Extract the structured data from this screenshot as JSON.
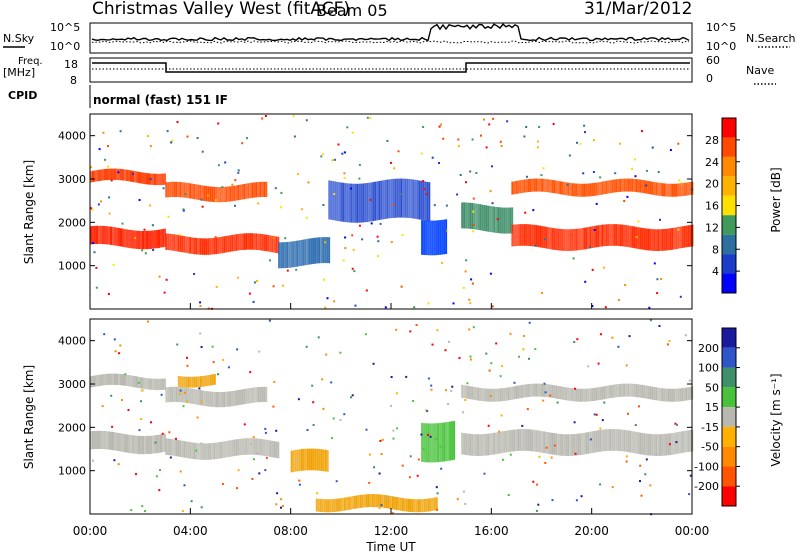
{
  "header": {
    "title": "Christmas Valley West (fitACF)",
    "beam": "Beam 05",
    "date": "31/Mar/2012"
  },
  "top_panel": {
    "left_label": "N.Sky",
    "right_label": "N.Search",
    "tick_high": "10^5",
    "tick_low": "10^0"
  },
  "freq_panel": {
    "left_label_line1": "Freq.",
    "left_label_line2": "[MHz]",
    "tick_high": "18",
    "tick_low": "8",
    "right_label": "Nave",
    "right_tick_high": "60",
    "right_tick_low": "0"
  },
  "cpid": {
    "label": "CPID",
    "value": "normal (fast) 151 IF"
  },
  "chart_data": [
    {
      "type": "heatmap",
      "title": "",
      "ylabel": "Slant Range [km]",
      "ylim": [
        0,
        4500
      ],
      "yticks": [
        "1000",
        "2000",
        "3000",
        "4000"
      ],
      "xlim": [
        0,
        24
      ],
      "colorbar_label": "Power [dB]",
      "colorbar_ticks": [
        "28",
        "24",
        "20",
        "16",
        "12",
        "8",
        "4"
      ],
      "colorbar_colors": [
        "#ff0000",
        "#ff4a00",
        "#ff8a00",
        "#ffb300",
        "#ffe000",
        "#3f9a5c",
        "#2d6f9f",
        "#1a3cc8",
        "#0000ff"
      ],
      "bands": [
        {
          "x0": 0.0,
          "x1": 3.0,
          "ymid": 3050,
          "thick": 260,
          "color": "#ff3a00"
        },
        {
          "x0": 0.0,
          "x1": 3.0,
          "ymid": 1650,
          "thick": 420,
          "color": "#ff2200"
        },
        {
          "x0": 3.0,
          "x1": 7.0,
          "ymid": 2700,
          "thick": 350,
          "color": "#ff4a00"
        },
        {
          "x0": 3.0,
          "x1": 7.5,
          "ymid": 1500,
          "thick": 380,
          "color": "#ff2a00"
        },
        {
          "x0": 7.5,
          "x1": 9.5,
          "ymid": 1300,
          "thick": 600,
          "color": "#2f6fb0"
        },
        {
          "x0": 9.5,
          "x1": 13.5,
          "ymid": 2500,
          "thick": 900,
          "color": "#2a4fcf"
        },
        {
          "x0": 13.2,
          "x1": 14.2,
          "ymid": 1700,
          "thick": 800,
          "color": "#0040ff"
        },
        {
          "x0": 14.8,
          "x1": 16.8,
          "ymid": 2100,
          "thick": 600,
          "color": "#3f8f6a"
        },
        {
          "x0": 16.8,
          "x1": 24.0,
          "ymid": 2800,
          "thick": 300,
          "color": "#ff5000"
        },
        {
          "x0": 16.8,
          "x1": 24.0,
          "ymid": 1650,
          "thick": 500,
          "color": "#ff2a00"
        }
      ]
    },
    {
      "type": "heatmap",
      "title": "",
      "ylabel": "Slant Range [km]",
      "xlabel": "Time UT",
      "ylim": [
        0,
        4500
      ],
      "yticks": [
        "1000",
        "2000",
        "3000",
        "4000"
      ],
      "xlim": [
        0,
        24
      ],
      "xticks": [
        "00:00",
        "04:00",
        "08:00",
        "12:00",
        "16:00",
        "20:00",
        "00:00"
      ],
      "colorbar_label": "Velocity [m s⁻¹]",
      "colorbar_ticks": [
        "200",
        "100",
        "50",
        "15",
        "-15",
        "-50",
        "-100",
        "-200"
      ],
      "colorbar_colors": [
        "#1a1aa0",
        "#2f55c8",
        "#3f8f6a",
        "#48c23a",
        "#b8b8b0",
        "#ffb000",
        "#ff8a00",
        "#ff5500",
        "#ff0000"
      ],
      "bands": [
        {
          "x0": 0.0,
          "x1": 3.0,
          "ymid": 3050,
          "thick": 260,
          "color": "#b8b8b0"
        },
        {
          "x0": 0.0,
          "x1": 3.0,
          "ymid": 1650,
          "thick": 420,
          "color": "#b8b8b0"
        },
        {
          "x0": 3.0,
          "x1": 7.0,
          "ymid": 2700,
          "thick": 350,
          "color": "#b8b8b0"
        },
        {
          "x0": 3.0,
          "x1": 7.5,
          "ymid": 1500,
          "thick": 380,
          "color": "#b8b8b0"
        },
        {
          "x0": 3.5,
          "x1": 5.0,
          "ymid": 3100,
          "thick": 250,
          "color": "#f0a000"
        },
        {
          "x0": 8.0,
          "x1": 9.5,
          "ymid": 1200,
          "thick": 500,
          "color": "#f0a000"
        },
        {
          "x0": 13.2,
          "x1": 14.5,
          "ymid": 1700,
          "thick": 900,
          "color": "#48c23a"
        },
        {
          "x0": 9.0,
          "x1": 13.8,
          "ymid": 250,
          "thick": 300,
          "color": "#f0a000"
        },
        {
          "x0": 14.8,
          "x1": 24.0,
          "ymid": 2800,
          "thick": 300,
          "color": "#b8b8b0"
        },
        {
          "x0": 14.8,
          "x1": 24.0,
          "ymid": 1650,
          "thick": 500,
          "color": "#b8b8b0"
        }
      ]
    }
  ]
}
